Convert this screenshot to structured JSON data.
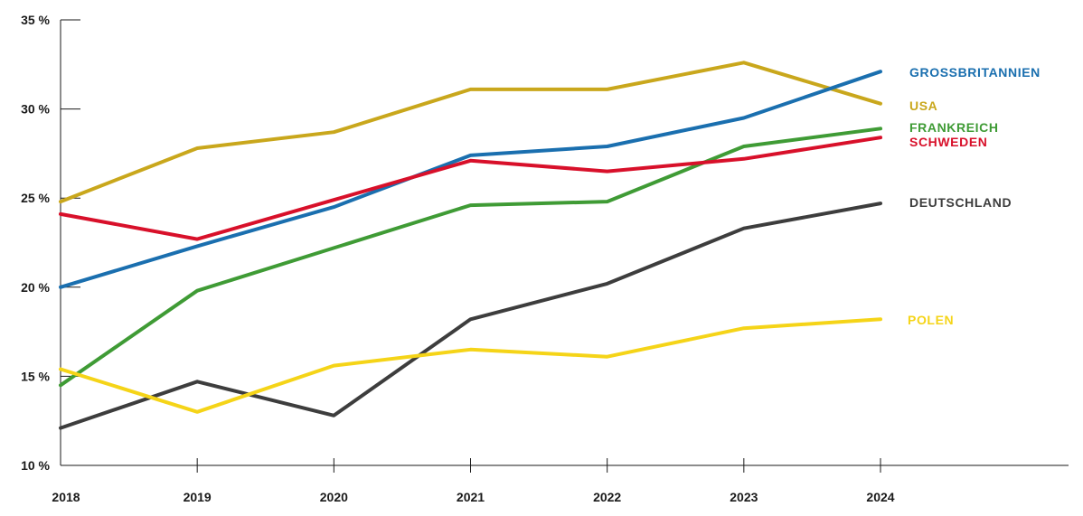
{
  "chart_data": {
    "type": "line",
    "x": [
      "2018",
      "2019",
      "2020",
      "2021",
      "2022",
      "2023",
      "2024"
    ],
    "ylim": [
      10,
      35
    ],
    "y_ticks": [
      {
        "value": 10,
        "label": "10 %"
      },
      {
        "value": 15,
        "label": "15 %"
      },
      {
        "value": 20,
        "label": "20 %"
      },
      {
        "value": 25,
        "label": "25 %"
      },
      {
        "value": 30,
        "label": "30 %"
      },
      {
        "value": 35,
        "label": "35 %"
      }
    ],
    "grid": false,
    "legend": "right, labels at line ends",
    "series": [
      {
        "name": "USA",
        "color": "#c9a71c",
        "values": [
          24.8,
          27.8,
          28.7,
          31.1,
          31.1,
          32.6,
          30.3
        ]
      },
      {
        "name": "GROSSBRITANNIEN",
        "color": "#1a6faf",
        "values": [
          20.0,
          22.3,
          24.5,
          27.4,
          27.9,
          29.5,
          32.1
        ]
      },
      {
        "name": "FRANKREICH",
        "color": "#3f9b35",
        "values": [
          14.5,
          19.8,
          22.2,
          24.6,
          24.8,
          27.9,
          28.9
        ]
      },
      {
        "name": "SCHWEDEN",
        "color": "#d8102a",
        "values": [
          24.1,
          22.7,
          24.9,
          27.1,
          26.5,
          27.2,
          28.4
        ]
      },
      {
        "name": "DEUTSCHLAND",
        "color": "#3d3d3d",
        "values": [
          12.1,
          14.7,
          12.8,
          18.2,
          20.2,
          23.3,
          24.7
        ]
      },
      {
        "name": "POLEN",
        "color": "#f5d418",
        "values": [
          15.4,
          13.0,
          15.6,
          16.5,
          16.1,
          17.7,
          18.2
        ]
      }
    ]
  }
}
